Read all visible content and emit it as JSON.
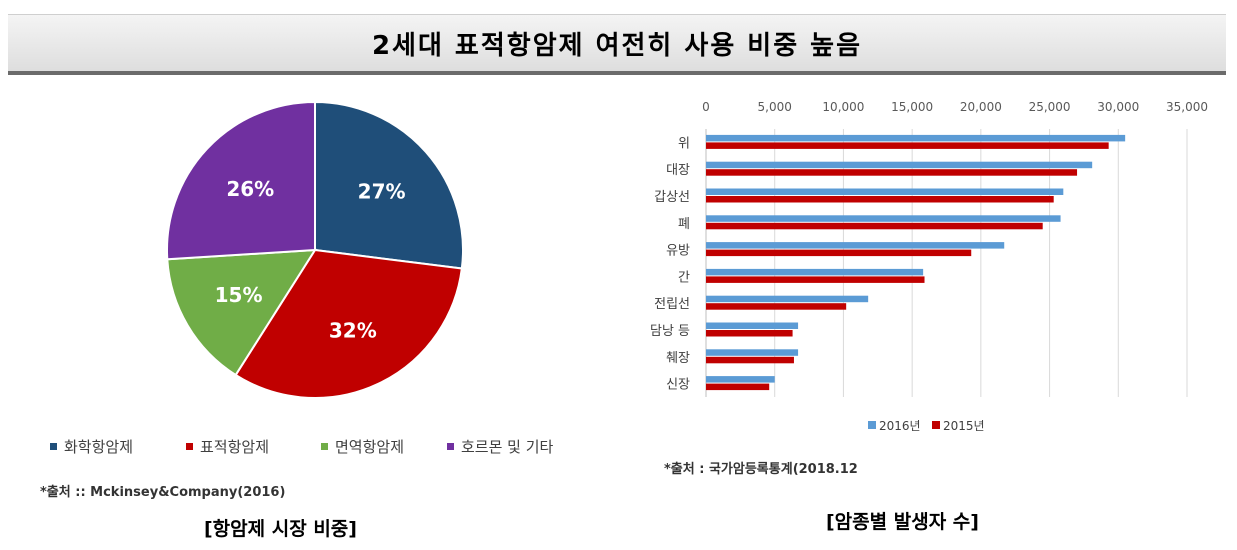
{
  "page": {
    "title": "2세대 표적항암제 여전히 사용 비중 높음"
  },
  "charts": [
    {
      "source": "*출처 :: Mckinsey&Company(2016)",
      "caption": "[항암제 시장 비중]"
    },
    {
      "source": "*출처 :   국가암등록통계(2018.12",
      "caption": "[암종별 발생자 수]"
    }
  ],
  "chart_data": [
    {
      "type": "pie",
      "categories": [
        "화학항암제",
        "표적항암제",
        "면역항암제",
        "호르몬 및 기타"
      ],
      "values": [
        27,
        32,
        15,
        26
      ],
      "labels": [
        "27%",
        "32%",
        "15%",
        "26%"
      ],
      "colors": [
        "#1f4e79",
        "#c00000",
        "#70ad47",
        "#7030a0"
      ],
      "legend_position": "bottom"
    },
    {
      "type": "bar",
      "orientation": "horizontal",
      "categories": [
        "위",
        "대장",
        "갑상선",
        "폐",
        "유방",
        "간",
        "전립선",
        "담낭 등",
        "췌장",
        "신장"
      ],
      "series": [
        {
          "name": "2016년",
          "color": "#5b9bd5",
          "values": [
            30500,
            28100,
            26000,
            25800,
            21700,
            15800,
            11800,
            6700,
            6700,
            5000
          ]
        },
        {
          "name": "2015년",
          "color": "#c00000",
          "values": [
            29300,
            27000,
            25300,
            24500,
            19300,
            15900,
            10200,
            6300,
            6400,
            4600
          ]
        }
      ],
      "x_ticks": [
        "0",
        "5,000",
        "10,000",
        "15,000",
        "20,000",
        "25,000",
        "30,000",
        "35,000"
      ],
      "xlim": [
        0,
        35000
      ],
      "grid": true,
      "legend_position": "bottom"
    }
  ]
}
